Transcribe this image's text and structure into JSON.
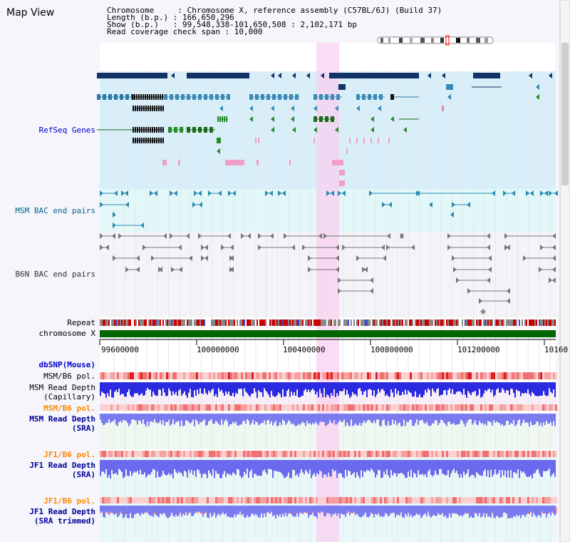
{
  "title": "Map View",
  "info": {
    "chromosome": "Chromosome     : Chromosome X, reference assembly (C57BL/6J) (Build 37)",
    "length": "Length (b.p.) : 166,650,296",
    "show": "Show (b.p.)   : 99,548,338-101,650,508 : 2,102,171 bp",
    "coverage": "Read coverage check span : 10,000"
  },
  "tracks": {
    "refseq": "RefSeq Genes",
    "msm_bac": "MSM BAC end pairs",
    "b6n_bac": "B6N BAC end pairs",
    "repeat": "Repeat",
    "chromosome": "chromosome X"
  },
  "ruler_ticks": [
    "99600000",
    "100000000",
    "100400000",
    "100800000",
    "101200000",
    "10160"
  ],
  "lower_tracks": {
    "dbsnp": "dbSNP(Mouse)",
    "msm_b6_pol_1": "MSM/B6 pol.",
    "msm_depth_cap_1": "MSM Read Depth",
    "msm_depth_cap_2": "(Capillary)",
    "msm_b6_pol_2": "MSM/B6 pol.",
    "msm_depth_sra_1": "MSM Read Depth",
    "msm_depth_sra_2": "(SRA)",
    "jf1_b6_pol_1": "JF1/B6 pol.",
    "jf1_depth_sra_1": "JF1 Read Depth",
    "jf1_depth_sra_2": "(SRA)",
    "jf1_b6_pol_2": "JF1/B6 pol.",
    "jf1_depth_trim_1": "JF1 Read Depth",
    "jf1_depth_trim_2": "(SRA trimmed)"
  },
  "colors": {
    "refseq_label": "#0000cc",
    "msm_bac_label": "#006688",
    "b6n_label": "#333333",
    "pol_label": "#ff8800",
    "depth_label": "#000099",
    "highlight": "#f8d0f0",
    "chromosome_bar": "#006600"
  }
}
